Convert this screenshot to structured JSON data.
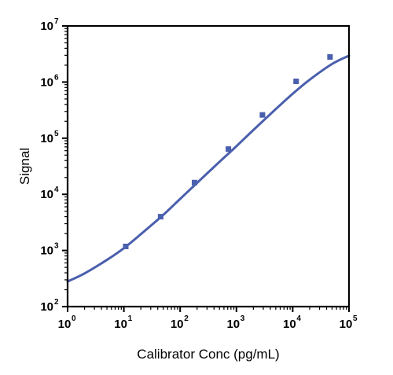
{
  "chart_data": {
    "type": "scatter",
    "title": "",
    "xlabel": "Calibrator Conc (pg/mL)",
    "ylabel": "Signal",
    "x_scale": "log",
    "y_scale": "log",
    "xlim": [
      1,
      100000
    ],
    "ylim": [
      100,
      10000000
    ],
    "grid": false,
    "legend": "none",
    "x_ticks": [
      {
        "base": "10",
        "exp": "0"
      },
      {
        "base": "10",
        "exp": "1"
      },
      {
        "base": "10",
        "exp": "2"
      },
      {
        "base": "10",
        "exp": "3"
      },
      {
        "base": "10",
        "exp": "4"
      },
      {
        "base": "10",
        "exp": "5"
      }
    ],
    "y_ticks": [
      {
        "base": "10",
        "exp": "2"
      },
      {
        "base": "10",
        "exp": "3"
      },
      {
        "base": "10",
        "exp": "4"
      },
      {
        "base": "10",
        "exp": "5"
      },
      {
        "base": "10",
        "exp": "6"
      },
      {
        "base": "10",
        "exp": "7"
      }
    ],
    "series": [
      {
        "kind": "points",
        "marker": "square",
        "color": "#4a5fad",
        "x": [
          10.8,
          45,
          180,
          720,
          2900,
          11500,
          46000
        ],
        "y": [
          1180,
          4000,
          16200,
          64000,
          260000,
          1030000,
          2800000
        ]
      },
      {
        "kind": "fitted-curve",
        "color": "#4a5fad",
        "x": [
          1,
          2,
          5,
          10,
          20,
          50,
          100,
          200,
          500,
          1000,
          2000,
          5000,
          10000,
          20000,
          50000,
          100000
        ],
        "y": [
          280,
          390,
          680,
          1100,
          1950,
          4300,
          8300,
          16000,
          38000,
          72000,
          140000,
          330000,
          620000,
          1100000,
          2100000,
          2950000
        ]
      }
    ]
  }
}
